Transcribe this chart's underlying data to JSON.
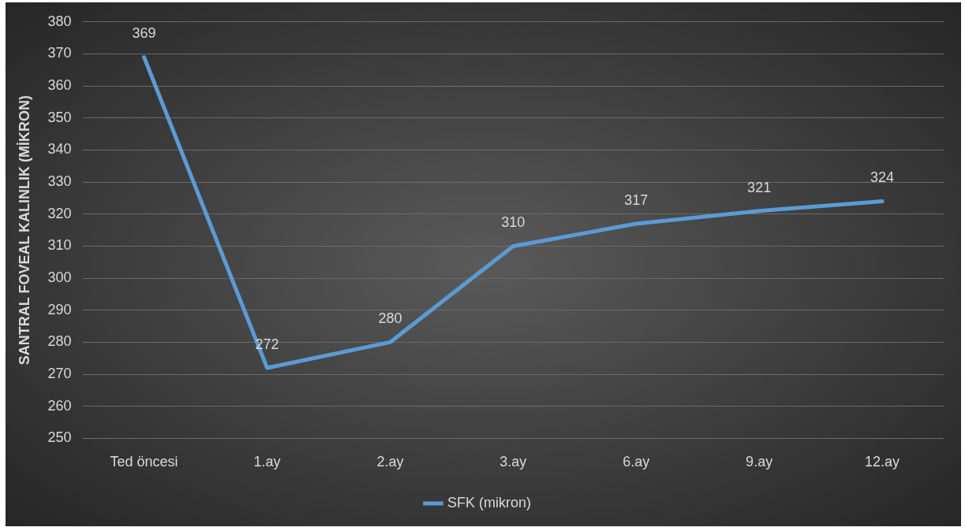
{
  "chart_data": {
    "type": "line",
    "ylabel": "SANTRAL FOVEAL KALINLIK (MİKRON)",
    "categories": [
      "Ted öncesi",
      "1.ay",
      "2.ay",
      "3.ay",
      "6.ay",
      "9.ay",
      "12.ay"
    ],
    "series": [
      {
        "name": "SFK (mikron)",
        "color": "#5b9bd5",
        "values": [
          369,
          272,
          280,
          310,
          317,
          321,
          324
        ]
      }
    ],
    "ylim": [
      250,
      380
    ],
    "yticks": [
      250,
      260,
      270,
      280,
      290,
      300,
      310,
      320,
      330,
      340,
      350,
      360,
      370,
      380
    ],
    "grid": "y",
    "legend": "bottom",
    "marker": "none",
    "line_style": "solid",
    "data_labels": true
  }
}
